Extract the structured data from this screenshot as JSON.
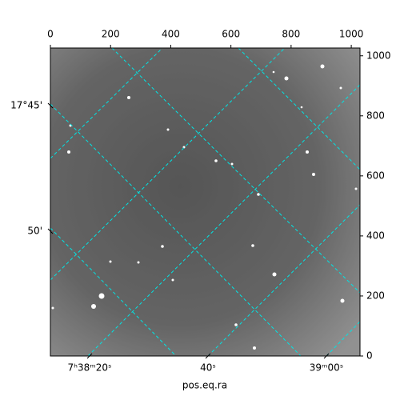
{
  "chart_data": {
    "type": "image",
    "xlabel": "pos.eq.ra",
    "xlim": [
      0,
      1029
    ],
    "xticks": [
      0,
      200,
      400,
      600,
      800,
      1000
    ],
    "ylim": [
      0,
      1026
    ],
    "yticks": [
      0,
      200,
      400,
      600,
      800,
      1000
    ],
    "ra_ticks": [
      "7ʰ38ᵐ20ˢ",
      "40ˢ",
      "39ᵐ00ˢ"
    ],
    "dec_ticks": [
      "17°45'",
      "50'"
    ]
  }
}
